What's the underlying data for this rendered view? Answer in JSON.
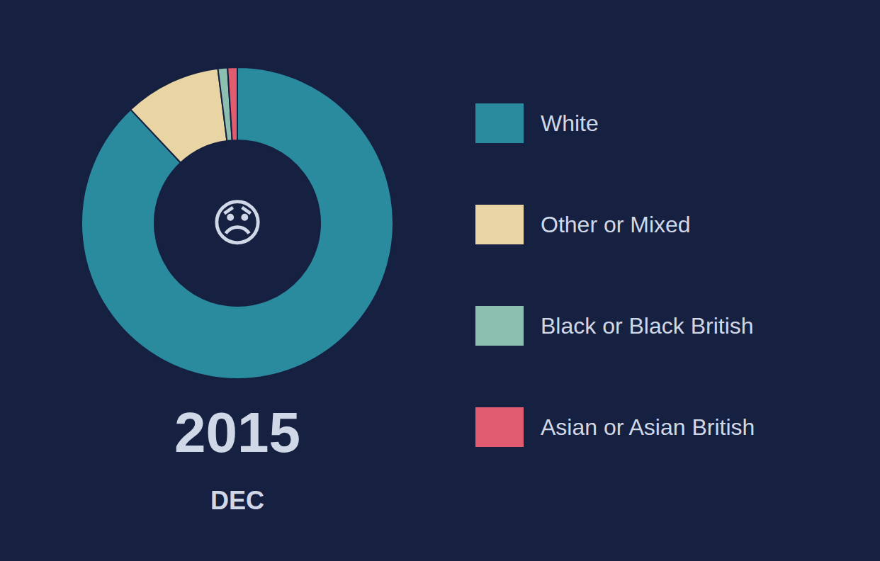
{
  "chart_data": {
    "type": "donut",
    "title": "2015",
    "subtitle": "DEC",
    "annotations": [
      "😞"
    ],
    "categories": [
      "White",
      "Other or Mixed",
      "Black or Black British",
      "Asian or Asian British"
    ],
    "values": [
      88,
      10,
      1,
      1
    ],
    "colors": [
      "#2a8a9e",
      "#e8d5a3",
      "#8dbfb0",
      "#e05c6e"
    ],
    "legend": "right"
  }
}
